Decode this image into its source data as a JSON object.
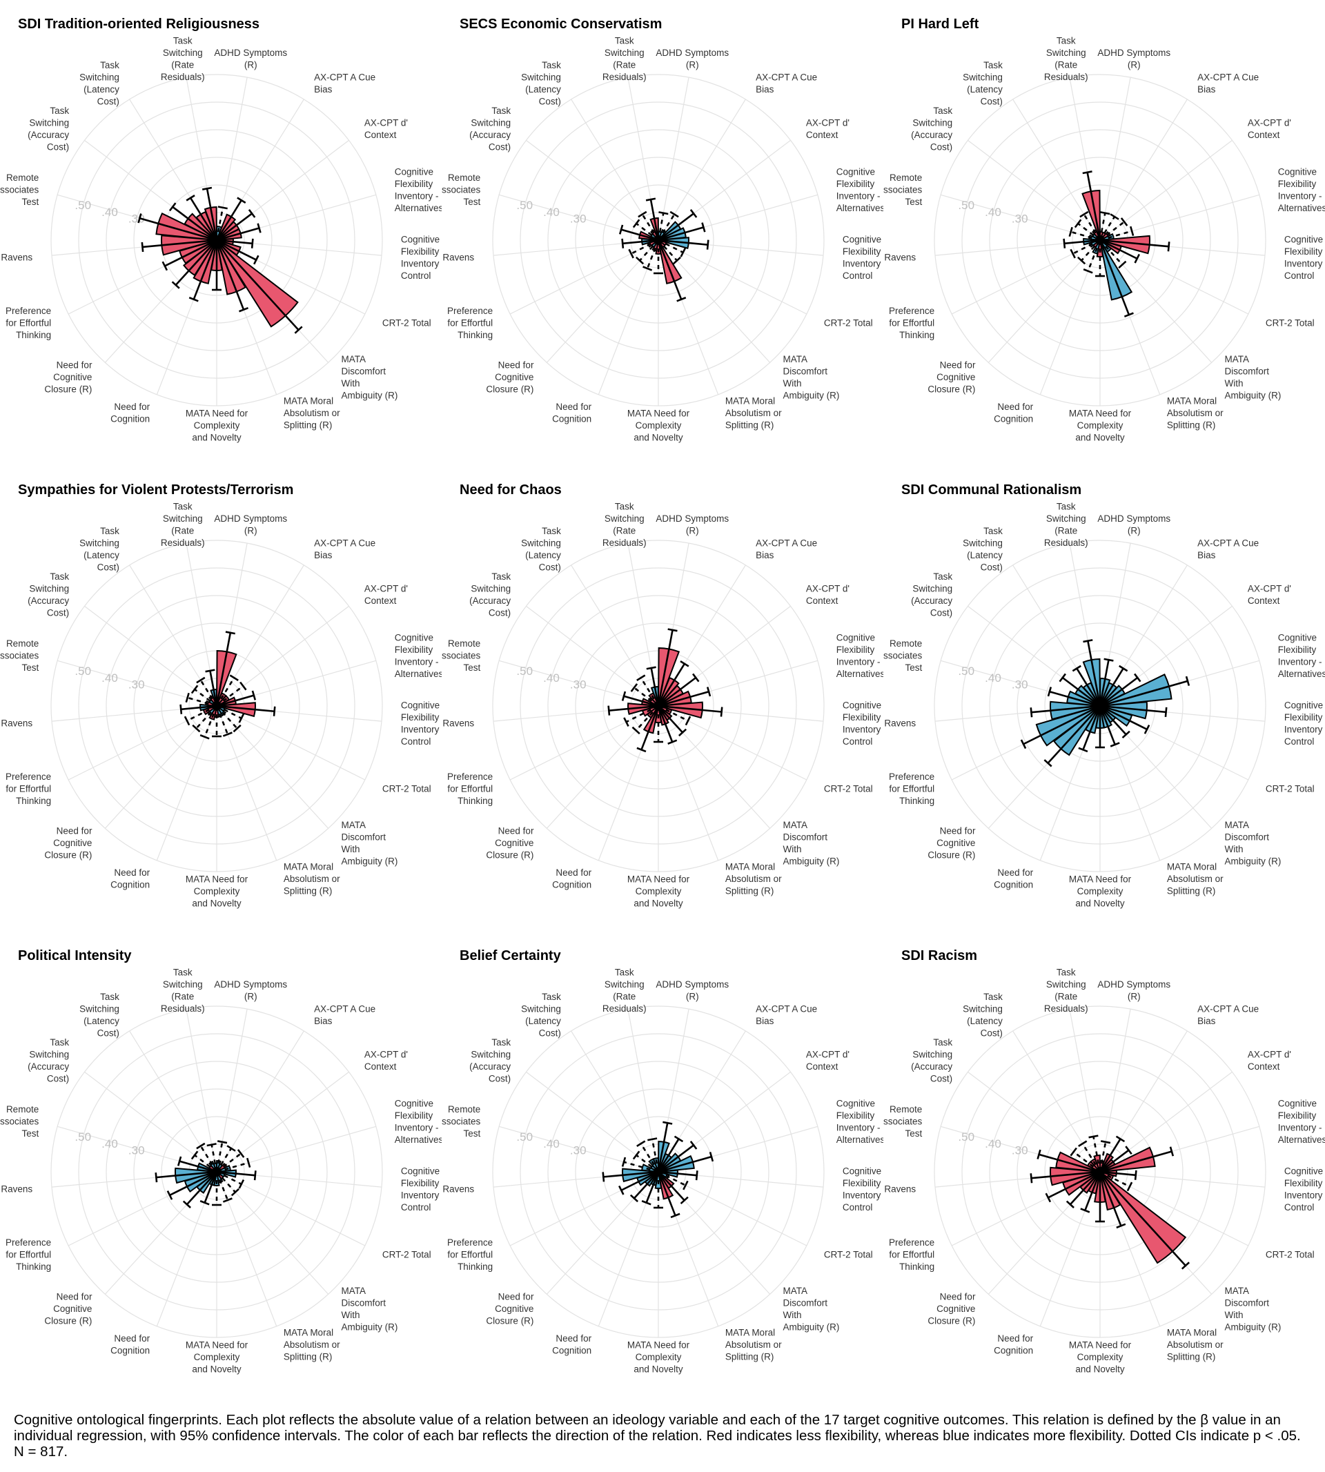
{
  "categories": [
    "ADHD Symptoms\n(R)",
    "AX-CPT A Cue\nBias",
    "AX-CPT d'\nContext",
    "Cognitive\nFlexibility\nInventory -\nAlternatives",
    "Cognitive\nFlexibility\nInventory -\nControl",
    "CRT-2 Total",
    "MATA\nDiscomfort\nWith\nAmbiguity (R)",
    "MATA Moral\nAbsolutism or\nSplitting (R)",
    "MATA Need for\nComplexity\nand Novelty",
    "Need for\nCognition",
    "Need for\nCognitive\nClosure (R)",
    "Preference\nfor Effortful\nThinking",
    "Ravens",
    "Remote\nAssociates\nTest",
    "Task\nSwitching\n(Accuracy\nCost)",
    "Task\nSwitching\n(Latency\nCost)",
    "Task\nSwitching\n(Rate\nResiduals)"
  ],
  "radial_tick_labels": [
    ".30",
    ".40",
    ".50"
  ],
  "colors": {
    "less_flexibility": "#e8576f",
    "more_flexibility": "#5ab0d2",
    "grid": "#e2e2e2",
    "outline": "#000000"
  },
  "chart_data": [
    {
      "type": "bar",
      "coord": "polar",
      "title": "SDI Tradition-oriented Religiousness",
      "categories_ref": "categories",
      "ylim": [
        0,
        0.6
      ],
      "values": [
        0.05,
        0.1,
        0.09,
        0.09,
        0.06,
        0.09,
        0.37,
        0.2,
        0.11,
        0.16,
        0.15,
        0.14,
        0.2,
        0.22,
        0.13,
        0.11,
        0.12
      ],
      "ci_upper": [
        0.12,
        0.17,
        0.16,
        0.16,
        0.13,
        0.16,
        0.44,
        0.27,
        0.18,
        0.23,
        0.22,
        0.21,
        0.27,
        0.29,
        0.2,
        0.18,
        0.19
      ],
      "direction": [
        "more",
        "less",
        "less",
        "less",
        "less",
        "less",
        "less",
        "less",
        "less",
        "less",
        "less",
        "less",
        "less",
        "less",
        "less",
        "less",
        "less"
      ],
      "ci_dotted": [
        true,
        false,
        false,
        false,
        false,
        false,
        false,
        false,
        false,
        false,
        false,
        false,
        false,
        false,
        false,
        false,
        false
      ]
    },
    {
      "type": "bar",
      "coord": "polar",
      "title": "SECS Economic Conservatism",
      "categories_ref": "categories",
      "ylim": [
        0,
        0.6
      ],
      "values": [
        0.03,
        0.04,
        0.09,
        0.1,
        0.11,
        0.03,
        0.03,
        0.16,
        0.05,
        0.04,
        0.03,
        0.04,
        0.06,
        0.07,
        0.03,
        0.04,
        0.08
      ],
      "ci_upper": [
        0.1,
        0.11,
        0.16,
        0.17,
        0.18,
        0.1,
        0.1,
        0.23,
        0.12,
        0.11,
        0.1,
        0.11,
        0.13,
        0.14,
        0.1,
        0.11,
        0.15
      ],
      "direction": [
        "more",
        "more",
        "more",
        "more",
        "more",
        "less",
        "less",
        "less",
        "less",
        "less",
        "more",
        "less",
        "more",
        "less",
        "more",
        "less",
        "less"
      ],
      "ci_dotted": [
        true,
        true,
        false,
        false,
        false,
        true,
        true,
        false,
        true,
        true,
        true,
        true,
        false,
        false,
        true,
        true,
        false
      ]
    },
    {
      "type": "bar",
      "coord": "polar",
      "title": "PI Hard Left",
      "categories_ref": "categories",
      "ylim": [
        0,
        0.6
      ],
      "values": [
        0.03,
        0.03,
        0.04,
        0.05,
        0.18,
        0.08,
        0.05,
        0.22,
        0.06,
        0.05,
        0.03,
        0.04,
        0.06,
        0.04,
        0.03,
        0.04,
        0.18
      ],
      "ci_upper": [
        0.1,
        0.1,
        0.11,
        0.12,
        0.25,
        0.15,
        0.12,
        0.29,
        0.13,
        0.12,
        0.1,
        0.11,
        0.13,
        0.11,
        0.1,
        0.11,
        0.25
      ],
      "direction": [
        "less",
        "less",
        "less",
        "more",
        "less",
        "less",
        "more",
        "more",
        "less",
        "more",
        "less",
        "more",
        "more",
        "more",
        "more",
        "less",
        "less"
      ],
      "ci_dotted": [
        true,
        true,
        true,
        true,
        false,
        false,
        true,
        false,
        true,
        true,
        true,
        true,
        false,
        true,
        true,
        true,
        false
      ]
    },
    {
      "type": "bar",
      "coord": "polar",
      "title": "Sympathies for Violent Protests/Terrorism",
      "categories_ref": "categories",
      "ylim": [
        0,
        0.6
      ],
      "values": [
        0.2,
        0.05,
        0.05,
        0.07,
        0.14,
        0.03,
        0.04,
        0.04,
        0.04,
        0.05,
        0.04,
        0.05,
        0.06,
        0.04,
        0.03,
        0.04,
        0.06
      ],
      "ci_upper": [
        0.27,
        0.12,
        0.12,
        0.14,
        0.21,
        0.1,
        0.11,
        0.11,
        0.11,
        0.12,
        0.11,
        0.12,
        0.13,
        0.11,
        0.1,
        0.11,
        0.13
      ],
      "direction": [
        "less",
        "less",
        "less",
        "less",
        "less",
        "more",
        "more",
        "more",
        "less",
        "less",
        "more",
        "less",
        "more",
        "less",
        "more",
        "less",
        "more"
      ],
      "ci_dotted": [
        false,
        true,
        true,
        false,
        false,
        true,
        true,
        true,
        true,
        true,
        true,
        true,
        false,
        true,
        true,
        true,
        false
      ]
    },
    {
      "type": "bar",
      "coord": "polar",
      "title": "Need for Chaos",
      "categories_ref": "categories",
      "ylim": [
        0,
        0.6
      ],
      "values": [
        0.21,
        0.11,
        0.1,
        0.12,
        0.16,
        0.05,
        0.06,
        0.07,
        0.06,
        0.1,
        0.05,
        0.06,
        0.11,
        0.06,
        0.04,
        0.05,
        0.07
      ],
      "ci_upper": [
        0.28,
        0.18,
        0.17,
        0.19,
        0.23,
        0.12,
        0.13,
        0.14,
        0.13,
        0.17,
        0.12,
        0.13,
        0.18,
        0.13,
        0.11,
        0.12,
        0.14
      ],
      "direction": [
        "less",
        "less",
        "less",
        "less",
        "less",
        "less",
        "less",
        "less",
        "less",
        "less",
        "less",
        "less",
        "less",
        "less",
        "less",
        "less",
        "more"
      ],
      "ci_dotted": [
        false,
        false,
        false,
        false,
        false,
        true,
        false,
        false,
        true,
        false,
        true,
        true,
        false,
        false,
        true,
        true,
        false
      ]
    },
    {
      "type": "bar",
      "coord": "polar",
      "title": "SDI Communal Rationalism",
      "categories_ref": "categories",
      "ylim": [
        0,
        0.6
      ],
      "values": [
        0.1,
        0.09,
        0.1,
        0.26,
        0.17,
        0.12,
        0.07,
        0.08,
        0.08,
        0.1,
        0.21,
        0.24,
        0.18,
        0.12,
        0.1,
        0.09,
        0.17
      ],
      "ci_upper": [
        0.17,
        0.16,
        0.17,
        0.33,
        0.24,
        0.19,
        0.14,
        0.15,
        0.15,
        0.17,
        0.28,
        0.31,
        0.25,
        0.19,
        0.17,
        0.16,
        0.24
      ],
      "direction": [
        "more",
        "more",
        "more",
        "more",
        "more",
        "more",
        "more",
        "more",
        "more",
        "more",
        "more",
        "more",
        "more",
        "more",
        "more",
        "more",
        "more"
      ],
      "ci_dotted": [
        false,
        false,
        false,
        false,
        false,
        false,
        false,
        false,
        false,
        false,
        false,
        false,
        false,
        false,
        false,
        false,
        false
      ]
    },
    {
      "type": "bar",
      "coord": "polar",
      "title": "Political Intensity",
      "categories_ref": "categories",
      "ylim": [
        0,
        0.6
      ],
      "values": [
        0.04,
        0.03,
        0.04,
        0.05,
        0.07,
        0.03,
        0.03,
        0.04,
        0.05,
        0.05,
        0.09,
        0.12,
        0.15,
        0.07,
        0.03,
        0.04,
        0.03
      ],
      "ci_upper": [
        0.11,
        0.1,
        0.11,
        0.12,
        0.14,
        0.1,
        0.1,
        0.11,
        0.12,
        0.12,
        0.16,
        0.19,
        0.22,
        0.14,
        0.1,
        0.11,
        0.1
      ],
      "direction": [
        "more",
        "more",
        "less",
        "more",
        "more",
        "more",
        "less",
        "more",
        "more",
        "more",
        "more",
        "more",
        "more",
        "more",
        "less",
        "more",
        "more"
      ],
      "ci_dotted": [
        true,
        true,
        true,
        true,
        false,
        true,
        true,
        true,
        true,
        false,
        false,
        false,
        false,
        false,
        true,
        true,
        true
      ]
    },
    {
      "type": "bar",
      "coord": "polar",
      "title": "Belief Certainty",
      "categories_ref": "categories",
      "ylim": [
        0,
        0.6
      ],
      "values": [
        0.11,
        0.07,
        0.09,
        0.13,
        0.07,
        0.04,
        0.07,
        0.1,
        0.06,
        0.05,
        0.06,
        0.08,
        0.13,
        0.06,
        0.03,
        0.05,
        0.05
      ],
      "ci_upper": [
        0.18,
        0.14,
        0.16,
        0.2,
        0.14,
        0.11,
        0.14,
        0.17,
        0.13,
        0.12,
        0.13,
        0.15,
        0.2,
        0.13,
        0.1,
        0.12,
        0.12
      ],
      "direction": [
        "more",
        "more",
        "more",
        "more",
        "more",
        "more",
        "less",
        "less",
        "more",
        "more",
        "more",
        "more",
        "more",
        "more",
        "more",
        "more",
        "more"
      ],
      "ci_dotted": [
        false,
        false,
        false,
        false,
        false,
        true,
        false,
        false,
        true,
        false,
        false,
        false,
        false,
        true,
        true,
        true,
        true
      ]
    },
    {
      "type": "bar",
      "coord": "polar",
      "title": "SDI Racism",
      "categories_ref": "categories",
      "ylim": [
        0,
        0.6
      ],
      "values": [
        0.04,
        0.07,
        0.06,
        0.2,
        0.06,
        0.05,
        0.39,
        0.14,
        0.11,
        0.08,
        0.09,
        0.14,
        0.18,
        0.16,
        0.05,
        0.05,
        0.06
      ],
      "ci_upper": [
        0.11,
        0.14,
        0.13,
        0.27,
        0.13,
        0.12,
        0.46,
        0.21,
        0.18,
        0.15,
        0.16,
        0.21,
        0.25,
        0.23,
        0.12,
        0.12,
        0.13
      ],
      "direction": [
        "less",
        "less",
        "less",
        "less",
        "less",
        "less",
        "less",
        "less",
        "less",
        "less",
        "less",
        "less",
        "less",
        "less",
        "less",
        "less",
        "less"
      ],
      "ci_dotted": [
        true,
        false,
        false,
        false,
        false,
        true,
        false,
        false,
        false,
        false,
        false,
        false,
        false,
        false,
        true,
        true,
        true
      ]
    }
  ],
  "caption": "Cognitive ontological fingerprints. Each plot reflects the absolute value of a relation between an ideology variable and each of the 17 target cognitive outcomes. This relation is defined by the β value in an individual regression, with 95% confidence intervals. The color of each bar reflects the direction of the relation. Red indicates less flexibility, whereas blue indicates more flexibility. Dotted CIs indicate p < .05. N = 817."
}
